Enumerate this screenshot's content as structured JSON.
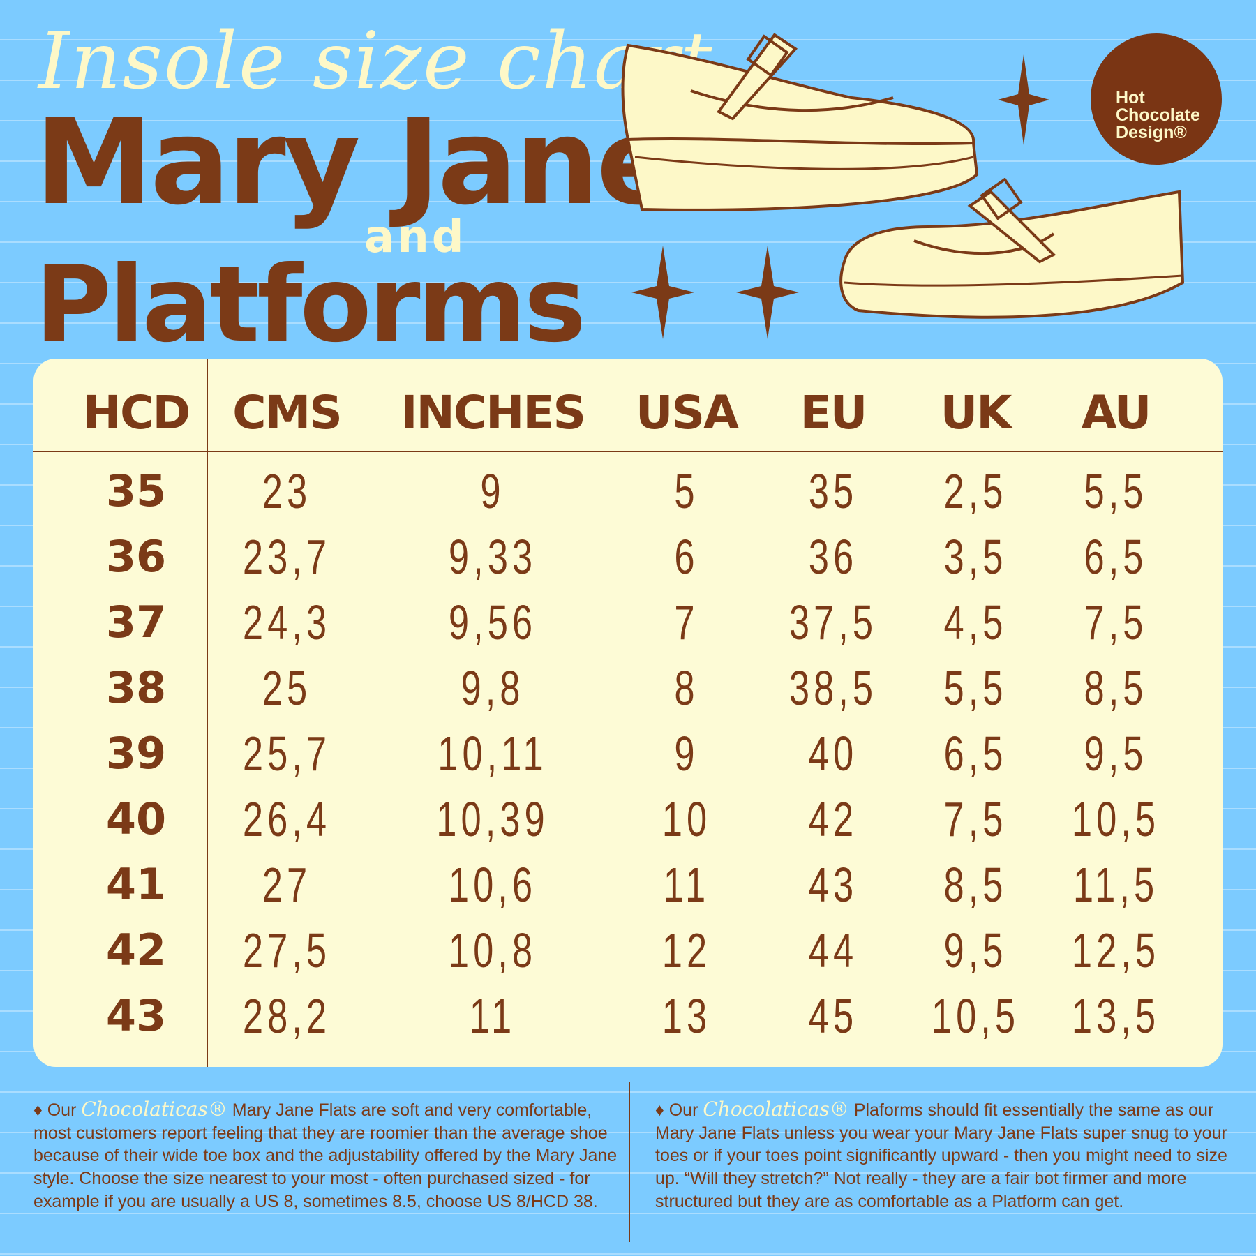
{
  "header": {
    "script_title": "Insole size chart",
    "title_line1": "Mary Jane",
    "title_and": "and",
    "title_line2": "Platforms"
  },
  "logo": {
    "line1": "Hot",
    "line2": "Chocolate",
    "line3": "Design®"
  },
  "colors": {
    "background": "#7ccbff",
    "brown": "#7b3a17",
    "cream": "#fdfbd6"
  },
  "table": {
    "columns": [
      "HCD",
      "CMS",
      "INCHES",
      "USA",
      "EU",
      "UK",
      "AU"
    ],
    "rows": [
      [
        "35",
        "23",
        "9",
        "5",
        "35",
        "2,5",
        "5,5"
      ],
      [
        "36",
        "23,7",
        "9,33",
        "6",
        "36",
        "3,5",
        "6,5"
      ],
      [
        "37",
        "24,3",
        "9,56",
        "7",
        "37,5",
        "4,5",
        "7,5"
      ],
      [
        "38",
        "25",
        "9,8",
        "8",
        "38,5",
        "5,5",
        "8,5"
      ],
      [
        "39",
        "25,7",
        "10,11",
        "9",
        "40",
        "6,5",
        "9,5"
      ],
      [
        "40",
        "26,4",
        "10,39",
        "10",
        "42",
        "7,5",
        "10,5"
      ],
      [
        "41",
        "27",
        "10,6",
        "11",
        "43",
        "8,5",
        "11,5"
      ],
      [
        "42",
        "27,5",
        "10,8",
        "12",
        "44",
        "9,5",
        "12,5"
      ],
      [
        "43",
        "28,2",
        "11",
        "13",
        "45",
        "10,5",
        "13,5"
      ]
    ]
  },
  "notes": {
    "left": {
      "bullet": "♦",
      "prefix": "Our",
      "brand": "Chocolaticas®",
      "text": "Mary Jane Flats are soft and very comfortable, most customers report feeling that they are roomier than the average shoe because of their wide toe box and the adjustability offered by the Mary Jane style. Choose the size nearest to your most - often purchased sized - for example if you are usually a US 8, sometimes 8.5, choose US 8/HCD 38."
    },
    "right": {
      "bullet": "♦",
      "prefix": "Our",
      "brand": "Chocolaticas®",
      "text": "Plaforms should fit essentially the same as our Mary Jane Flats unless you wear your Mary Jane Flats super snug to your toes or if your toes point significantly upward - then you might need to size  up. “Will they stretch?” Not really - they are a fair bot firmer and more structured but they are as comfortable as a Platform can get."
    }
  }
}
